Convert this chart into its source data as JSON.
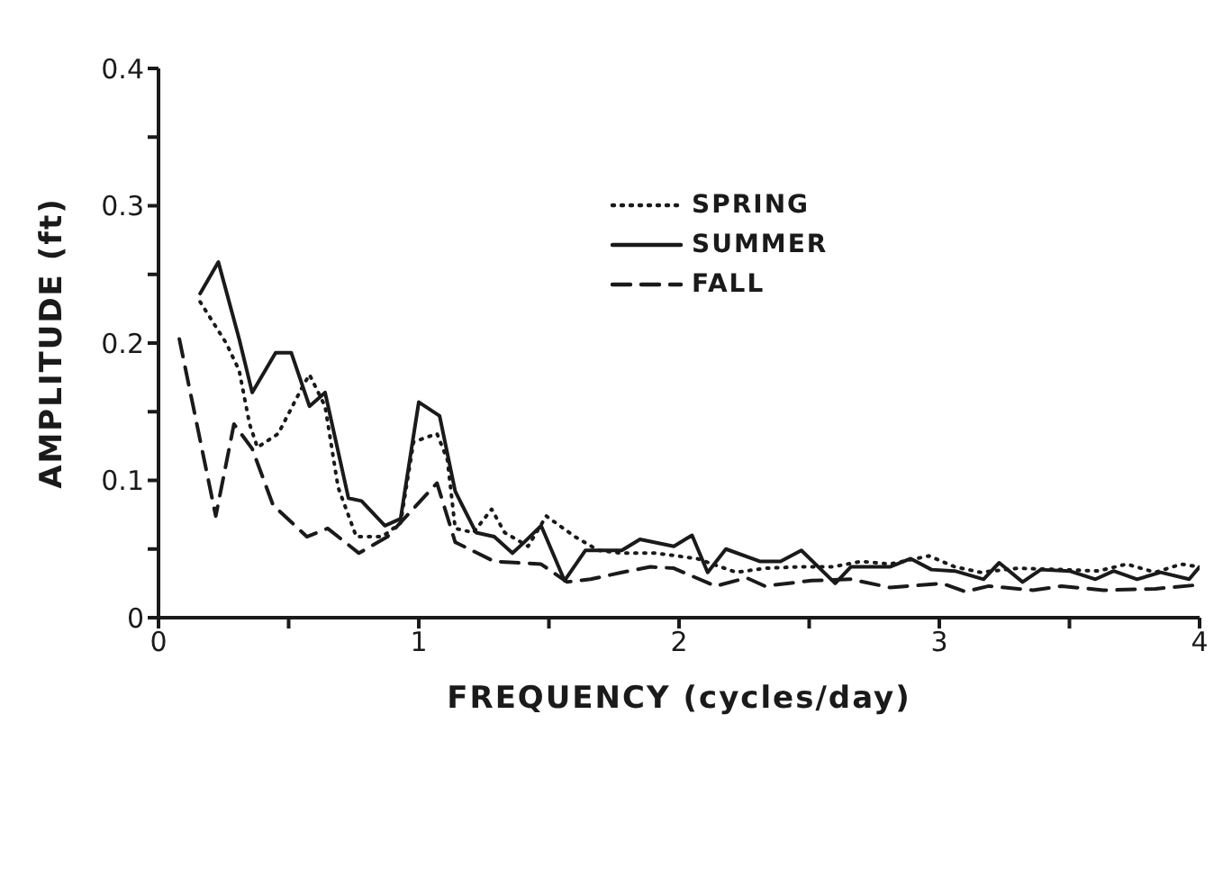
{
  "chart_data": {
    "type": "line",
    "xlabel": "FREQUENCY (cycles/day)",
    "ylabel": "AMPLITUDE (ft)",
    "xlim": [
      0,
      4
    ],
    "ylim": [
      0,
      0.4
    ],
    "xticks": [
      0,
      {
        "value": 0.5,
        "label": null
      },
      1,
      {
        "value": 1.5,
        "label": null
      },
      2,
      {
        "value": 2.5,
        "label": null
      },
      3,
      {
        "value": 3.5,
        "label": null
      },
      4
    ],
    "yticks": [
      0,
      {
        "value": 0.05,
        "label": null
      },
      0.1,
      {
        "value": 0.15,
        "label": null
      },
      0.2,
      {
        "value": 0.25,
        "label": null
      },
      0.3,
      {
        "value": 0.35,
        "label": null
      },
      0.4
    ],
    "grid": false,
    "legend": "top",
    "marker": "none",
    "series": [
      {
        "name": "SPRING",
        "color": "#1a1a1a",
        "line_style": "dotted",
        "x": [
          0.16,
          0.26,
          0.31,
          0.35,
          0.38,
          0.46,
          0.55,
          0.58,
          0.64,
          0.69,
          0.76,
          0.86,
          0.93,
          0.98,
          1.07,
          1.11,
          1.14,
          1.21,
          1.28,
          1.33,
          1.42,
          1.49,
          1.6,
          1.69,
          1.78,
          1.91,
          2.07,
          2.22,
          2.33,
          2.46,
          2.59,
          2.7,
          2.81,
          2.96,
          3.06,
          3.16,
          3.3,
          3.47,
          3.61,
          3.72,
          3.83,
          3.93,
          4.0
        ],
        "values": [
          0.23,
          0.2,
          0.18,
          0.141,
          0.124,
          0.134,
          0.167,
          0.177,
          0.154,
          0.095,
          0.059,
          0.059,
          0.069,
          0.128,
          0.134,
          0.115,
          0.065,
          0.062,
          0.079,
          0.062,
          0.052,
          0.074,
          0.059,
          0.049,
          0.047,
          0.047,
          0.043,
          0.033,
          0.036,
          0.037,
          0.037,
          0.041,
          0.039,
          0.045,
          0.037,
          0.033,
          0.036,
          0.035,
          0.034,
          0.039,
          0.033,
          0.039,
          0.037
        ]
      },
      {
        "name": "SUMMER",
        "color": "#1a1a1a",
        "line_style": "solid",
        "x": [
          0.16,
          0.23,
          0.31,
          0.36,
          0.45,
          0.51,
          0.58,
          0.64,
          0.73,
          0.78,
          0.87,
          0.93,
          1.0,
          1.08,
          1.14,
          1.22,
          1.29,
          1.36,
          1.4,
          1.47,
          1.56,
          1.64,
          1.78,
          1.85,
          1.98,
          2.05,
          2.11,
          2.18,
          2.31,
          2.39,
          2.47,
          2.6,
          2.66,
          2.81,
          2.89,
          2.97,
          3.06,
          3.17,
          3.23,
          3.32,
          3.39,
          3.5,
          3.6,
          3.67,
          3.76,
          3.85,
          3.96,
          4.0
        ],
        "values": [
          0.236,
          0.259,
          0.203,
          0.164,
          0.193,
          0.193,
          0.154,
          0.164,
          0.087,
          0.085,
          0.067,
          0.072,
          0.157,
          0.147,
          0.092,
          0.062,
          0.059,
          0.047,
          0.054,
          0.067,
          0.027,
          0.049,
          0.049,
          0.057,
          0.052,
          0.06,
          0.033,
          0.05,
          0.041,
          0.041,
          0.049,
          0.025,
          0.037,
          0.037,
          0.043,
          0.035,
          0.034,
          0.028,
          0.04,
          0.026,
          0.035,
          0.034,
          0.028,
          0.034,
          0.028,
          0.033,
          0.028,
          0.037
        ]
      },
      {
        "name": "FALL",
        "color": "#1a1a1a",
        "line_style": "dashed",
        "x": [
          0.08,
          0.22,
          0.29,
          0.36,
          0.44,
          0.57,
          0.65,
          0.77,
          0.88,
          1.07,
          1.14,
          1.29,
          1.47,
          1.57,
          1.66,
          1.78,
          1.89,
          1.98,
          2.14,
          2.26,
          2.33,
          2.51,
          2.66,
          2.81,
          3.01,
          3.1,
          3.19,
          3.36,
          3.47,
          3.63,
          3.83,
          4.0
        ],
        "values": [
          0.203,
          0.074,
          0.141,
          0.123,
          0.082,
          0.059,
          0.065,
          0.047,
          0.059,
          0.098,
          0.055,
          0.041,
          0.039,
          0.026,
          0.028,
          0.033,
          0.037,
          0.036,
          0.023,
          0.029,
          0.023,
          0.027,
          0.028,
          0.022,
          0.025,
          0.019,
          0.023,
          0.02,
          0.023,
          0.02,
          0.021,
          0.024
        ]
      }
    ]
  }
}
